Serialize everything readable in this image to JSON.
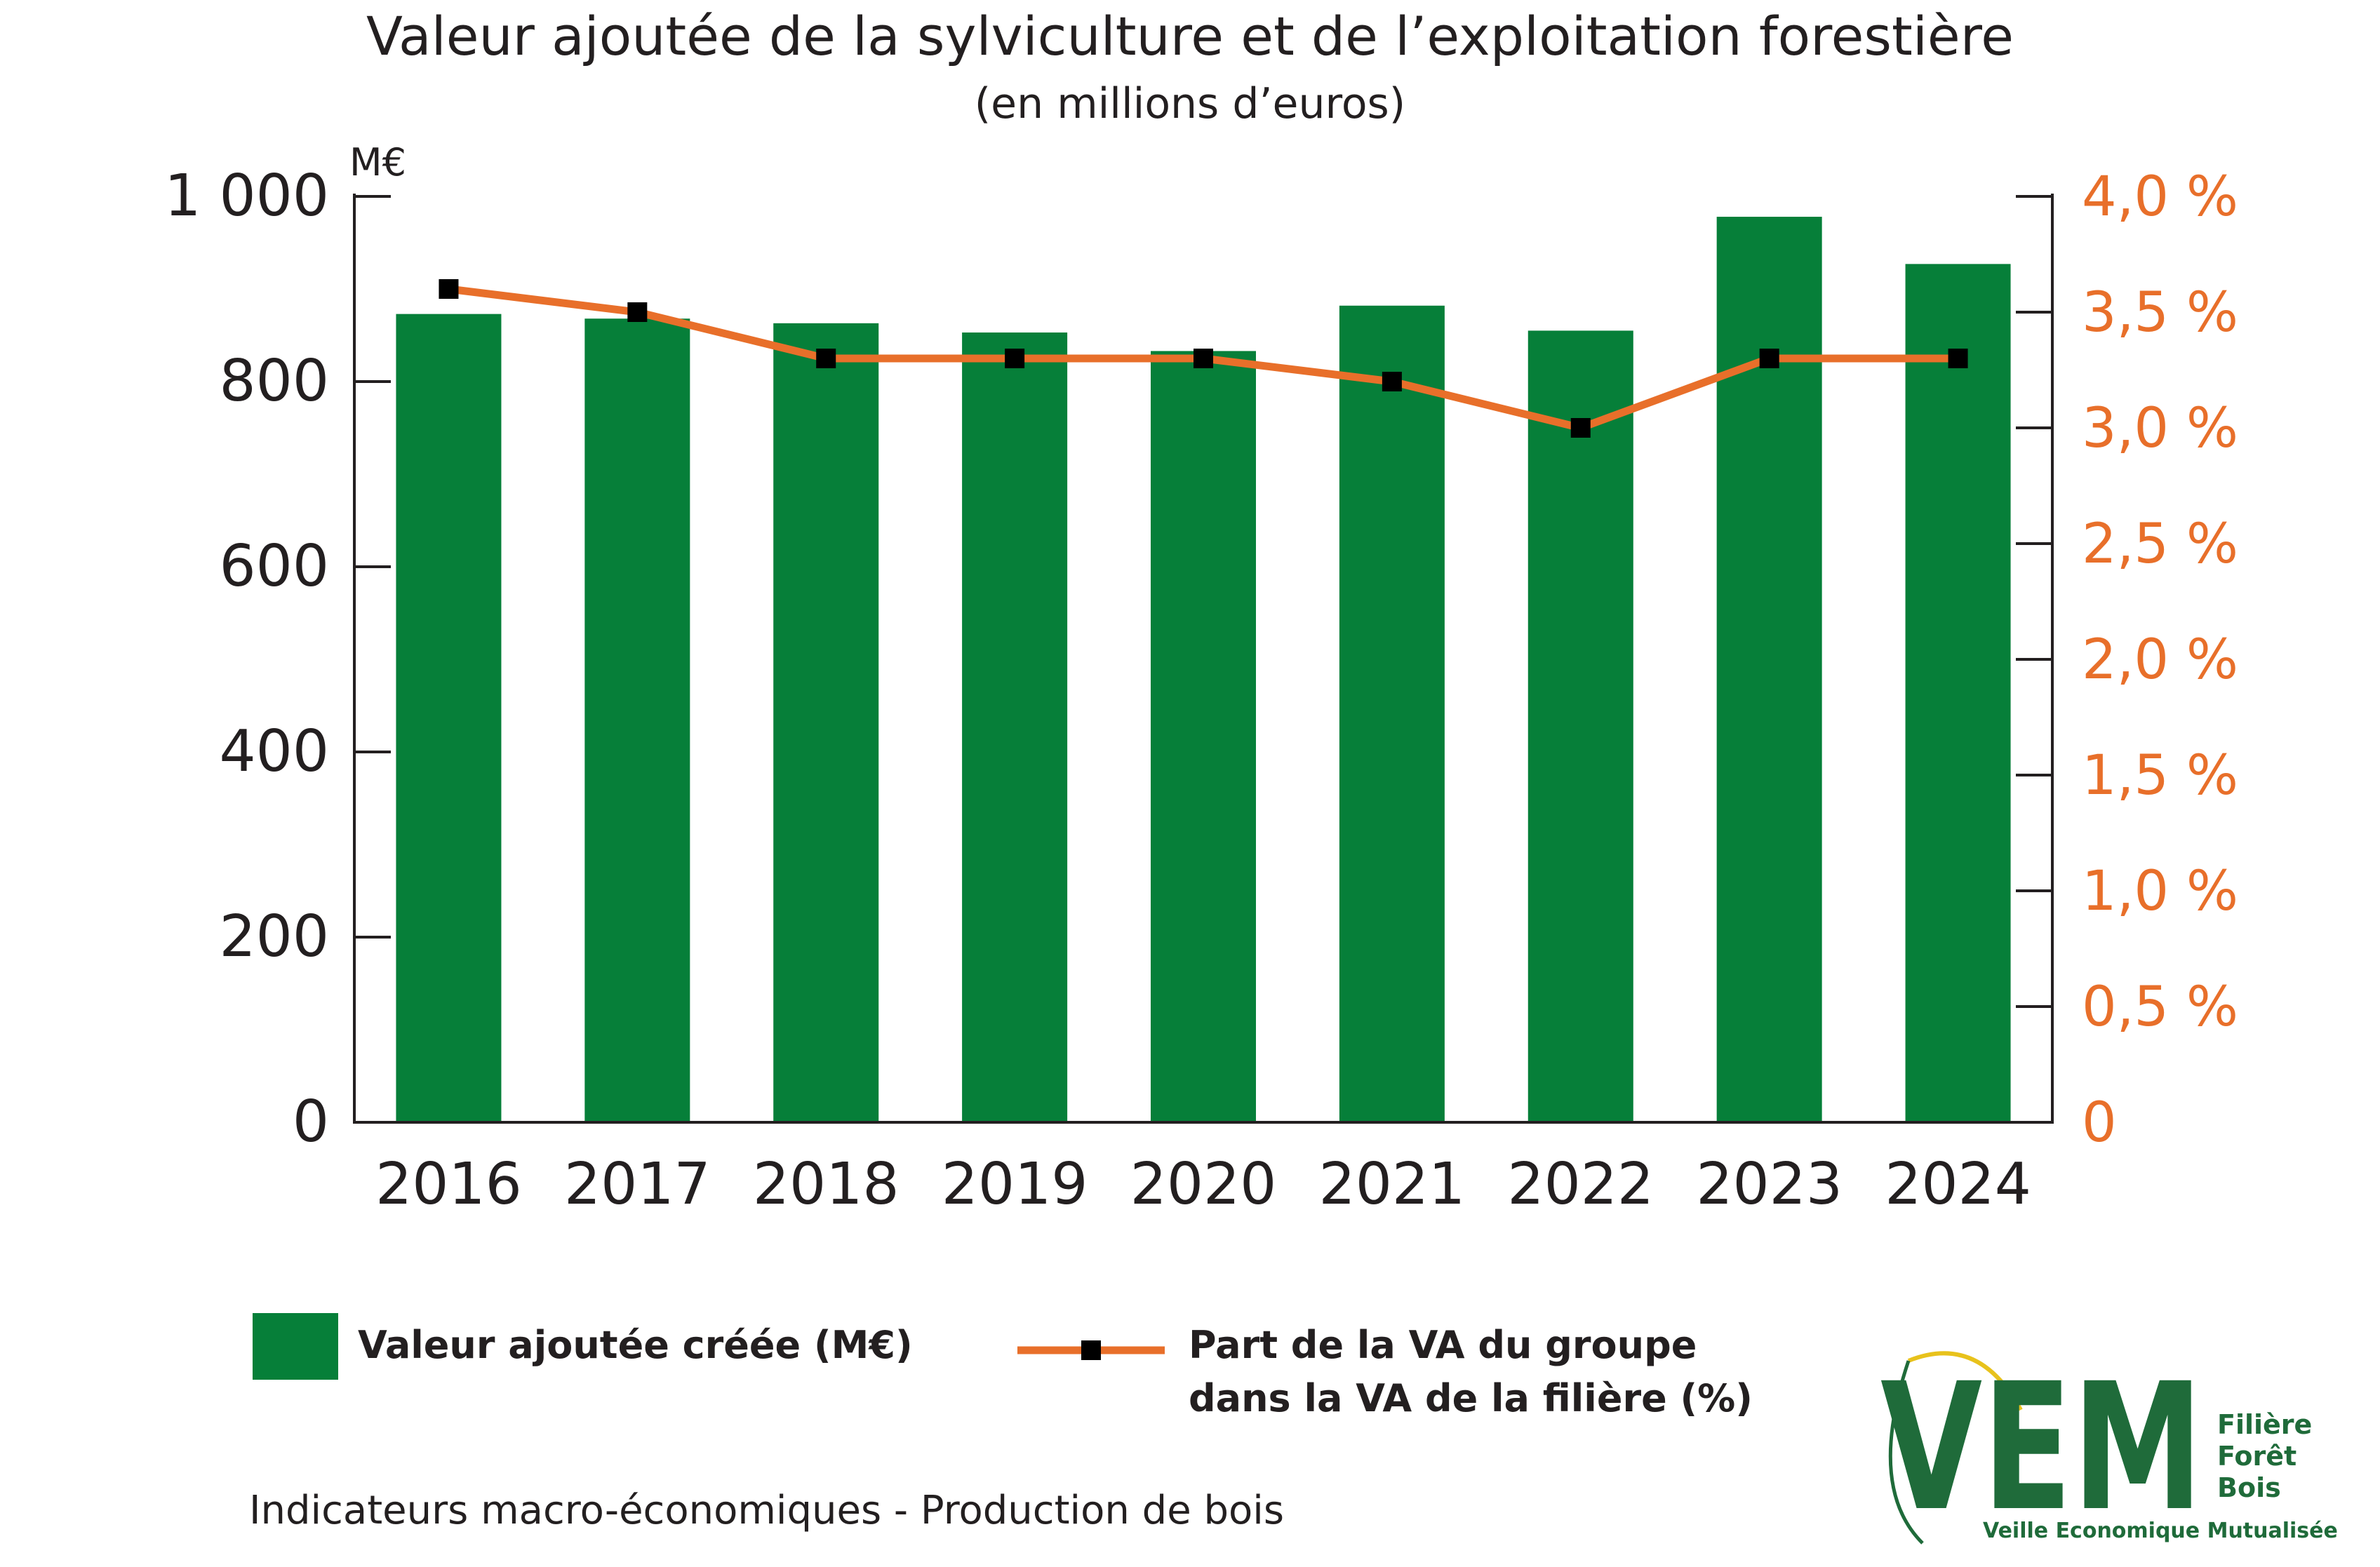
{
  "title": "Valeur ajoutée de la sylviculture et de l’exploitation forestière",
  "subtitle": "(en millions d’euros)",
  "footer": "Indicateurs macro-économiques - Production de bois",
  "logo": {
    "letters": "VEM",
    "line1": "Filière",
    "line2": "Forêt",
    "line3": "Bois",
    "tagline": "Veille Economique Mutualisée"
  },
  "colors": {
    "bar": "#067f39",
    "line": "#e86f2a",
    "marker": "#000000",
    "axis": "#231f20",
    "right_axis_text": "#e86f2a",
    "logo_green": "#1f6b3a",
    "logo_yellow": "#e8c21c"
  },
  "chart_data": {
    "type": "bar",
    "title": "Valeur ajoutée de la sylviculture et de l’exploitation forestière",
    "subtitle": "(en millions d’euros)",
    "categories": [
      "2016",
      "2017",
      "2018",
      "2019",
      "2020",
      "2021",
      "2022",
      "2023",
      "2024"
    ],
    "series": [
      {
        "name": "Valeur ajoutée créée (M€)",
        "type": "bar",
        "axis": "left",
        "values": [
          873,
          868,
          863,
          853,
          833,
          882,
          855,
          978,
          927
        ]
      },
      {
        "name": "Part de la VA du groupe dans la VA de la filière (%)",
        "legend_lines": [
          "Part de la VA du groupe",
          "dans la VA de la filière (%)"
        ],
        "type": "line",
        "axis": "right",
        "values": [
          3.6,
          3.5,
          3.3,
          3.3,
          3.3,
          3.2,
          3.0,
          3.3,
          3.3
        ]
      }
    ],
    "left_axis": {
      "unit_label": "M€",
      "range": [
        0,
        1000
      ],
      "ticks": [
        0,
        200,
        400,
        600,
        800,
        1000
      ],
      "tick_labels": [
        "0",
        "200",
        "400",
        "600",
        "800",
        "1 000"
      ]
    },
    "right_axis": {
      "range": [
        0,
        4.0
      ],
      "ticks": [
        0,
        0.5,
        1.0,
        1.5,
        2.0,
        2.5,
        3.0,
        3.5,
        4.0
      ],
      "tick_labels": [
        "0",
        "0,5 %",
        "1,0 %",
        "1,5 %",
        "2,0 %",
        "2,5 %",
        "3,0 %",
        "3,5 %",
        "4,0 %"
      ]
    },
    "grid": false,
    "legend_position": "bottom"
  }
}
